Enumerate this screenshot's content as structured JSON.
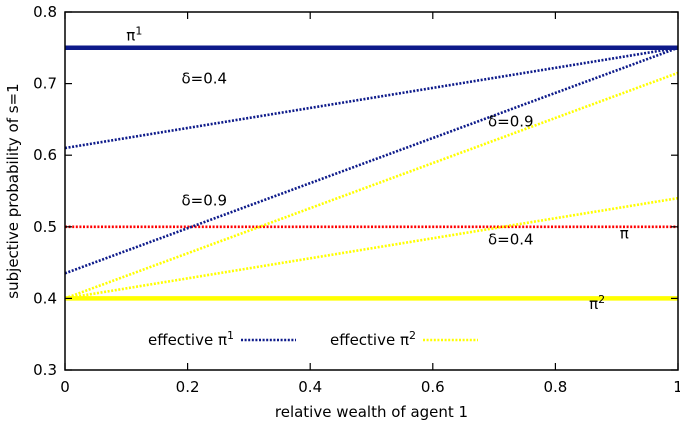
{
  "chart_data": {
    "type": "line",
    "xlabel": "relative wealth of agent 1",
    "ylabel": "subjective probability of s=1",
    "xlim": [
      0,
      1
    ],
    "ylim": [
      0.3,
      0.8
    ],
    "xticks": [
      "0",
      "0.2",
      "0.4",
      "0.6",
      "0.8",
      "1"
    ],
    "yticks": [
      "0.3",
      "0.4",
      "0.5",
      "0.6",
      "0.7",
      "0.8"
    ],
    "grid": false,
    "colors": {
      "pi1": "#0d1a8a",
      "pi2": "#ffff00",
      "pi": "#ff0000"
    },
    "series": [
      {
        "name": "π¹",
        "style": "solid",
        "color": "#0d1a8a",
        "x": [
          0,
          1
        ],
        "y": [
          0.75,
          0.75
        ]
      },
      {
        "name": "π²",
        "style": "solid",
        "color": "#ffff00",
        "x": [
          0,
          1
        ],
        "y": [
          0.4,
          0.4
        ]
      },
      {
        "name": "π",
        "style": "dotted",
        "color": "#ff0000",
        "x": [
          0,
          1
        ],
        "y": [
          0.5,
          0.5
        ]
      },
      {
        "name": "effective π¹, δ=0.4",
        "style": "dotted",
        "color": "#0d1a8a",
        "x": [
          0,
          1
        ],
        "y": [
          0.61,
          0.75
        ]
      },
      {
        "name": "effective π¹, δ=0.9",
        "style": "dotted",
        "color": "#0d1a8a",
        "x": [
          0,
          1
        ],
        "y": [
          0.435,
          0.75
        ]
      },
      {
        "name": "effective π², δ=0.9",
        "style": "dotted",
        "color": "#ffff00",
        "x": [
          0,
          1
        ],
        "y": [
          0.4,
          0.715
        ]
      },
      {
        "name": "effective π², δ=0.4",
        "style": "dotted",
        "color": "#ffff00",
        "x": [
          0,
          1
        ],
        "y": [
          0.4,
          0.54
        ]
      }
    ],
    "annotations": [
      {
        "base": "π",
        "sup": "1",
        "x": 0.1,
        "y": 0.76
      },
      {
        "base": "δ=0.4",
        "sup": "",
        "x": 0.19,
        "y": 0.7
      },
      {
        "base": "δ=0.9",
        "sup": "",
        "x": 0.19,
        "y": 0.53
      },
      {
        "base": "δ=0.9",
        "sup": "",
        "x": 0.69,
        "y": 0.64
      },
      {
        "base": "δ=0.4",
        "sup": "",
        "x": 0.69,
        "y": 0.475
      },
      {
        "base": "π",
        "sup": "",
        "x": 0.905,
        "y": 0.484
      },
      {
        "base": "π",
        "sup": "2",
        "x": 0.855,
        "y": 0.385
      }
    ],
    "legend": [
      {
        "label": "effective π",
        "sup": "1",
        "color": "#0d1a8a",
        "style": "dotted"
      },
      {
        "label": "effective π",
        "sup": "2",
        "color": "#ffff00",
        "style": "dotted"
      }
    ],
    "legend_position": "bottom-left"
  }
}
